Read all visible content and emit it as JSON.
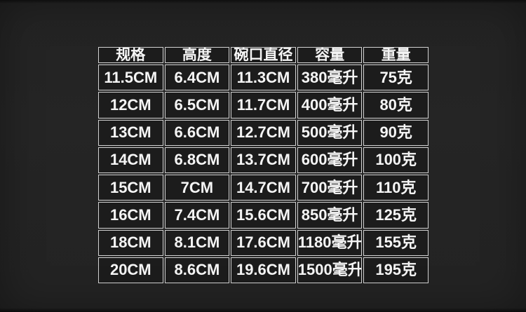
{
  "page": {
    "background_color": "#242424",
    "cell_background_color": "#1c1c1c",
    "border_color": "#d2d2d2",
    "text_color": "#f5f5f5"
  },
  "chart_data": {
    "type": "table",
    "title": "",
    "columns": [
      "规格",
      "高度",
      "碗口直径",
      "容量",
      "重量"
    ],
    "rows": [
      [
        "11.5CM",
        "6.4CM",
        "11.3CM",
        "380毫升",
        "75克"
      ],
      [
        "12CM",
        "6.5CM",
        "11.7CM",
        "400毫升",
        "80克"
      ],
      [
        "13CM",
        "6.6CM",
        "12.7CM",
        "500毫升",
        "90克"
      ],
      [
        "14CM",
        "6.8CM",
        "13.7CM",
        "600毫升",
        "100克"
      ],
      [
        "15CM",
        "7CM",
        "14.7CM",
        "700毫升",
        "110克"
      ],
      [
        "16CM",
        "7.4CM",
        "15.6CM",
        "850毫升",
        "125克"
      ],
      [
        "18CM",
        "8.1CM",
        "17.6CM",
        "1180毫升",
        "155克"
      ],
      [
        "20CM",
        "8.6CM",
        "19.6CM",
        "1500毫升",
        "195克"
      ]
    ]
  }
}
